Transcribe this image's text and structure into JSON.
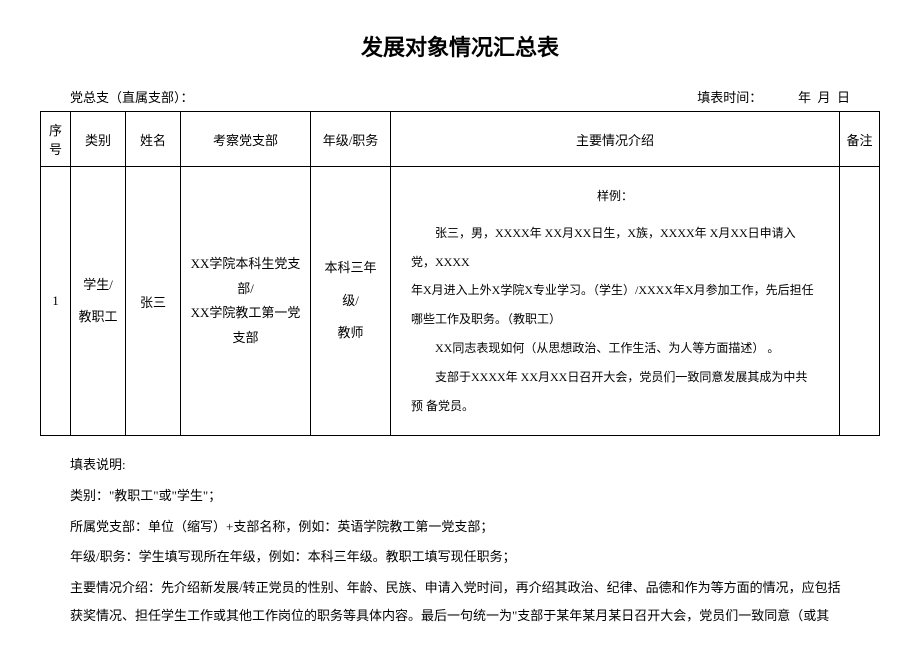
{
  "title": "发展对象情况汇总表",
  "header": {
    "left": "党总支（直属支部）：",
    "right": "填表时间：           年  月  日"
  },
  "table": {
    "columns": {
      "seq": "序号",
      "category": "类别",
      "name": "姓名",
      "branch": "考察党支部",
      "grade": "年级/职务",
      "intro": "主要情况介绍",
      "note": "备注"
    },
    "row": {
      "seq": "1",
      "category": "学生/\n教职工",
      "name": "张三",
      "branch": "XX学院本科生党支部/\nXX学院教工第一党支部",
      "grade": "本科三年级/\n教师",
      "intro_label": "样例：",
      "intro_p1": "张三，男，XXXX年 XX月XX日生，X族，XXXX年 X月XX日申请入党，XXXX",
      "intro_p2_a": "年X月进入上外X学院X专业学习。（学生）/XXXX年X月参加工作，先后担任",
      "intro_p2_b": "哪些工作及职务。（教职工）",
      "intro_p3": "XX同志表现如何（从思想政治、工作生活、为人等方面描述）      。",
      "intro_p4": "支部于XXXX年 XX月XX日召开大会，党员们一致同意发展其成为中共预 备党员。",
      "note": ""
    }
  },
  "notes": {
    "title": "填表说明:",
    "line1": "类别：\"教职工\"或\"学生\"；",
    "line2": "所属党支部：单位（缩写）+支部名称，例如：英语学院教工第一党支部；",
    "line3": "年级/职务：学生填写现所在年级，例如：本科三年级。教职工填写现任职务；",
    "line4": "主要情况介绍：先介绍新发展/转正党员的性别、年龄、民族、申请入党时间，再介绍其政治、纪律、品德和作为等方面的情况，应包括获奖情况、担任学生工作或其他工作岗位的职务等具体内容。最后一句统一为\"支部于某年某月某日召开大会，党员们一致同意（或其"
  }
}
